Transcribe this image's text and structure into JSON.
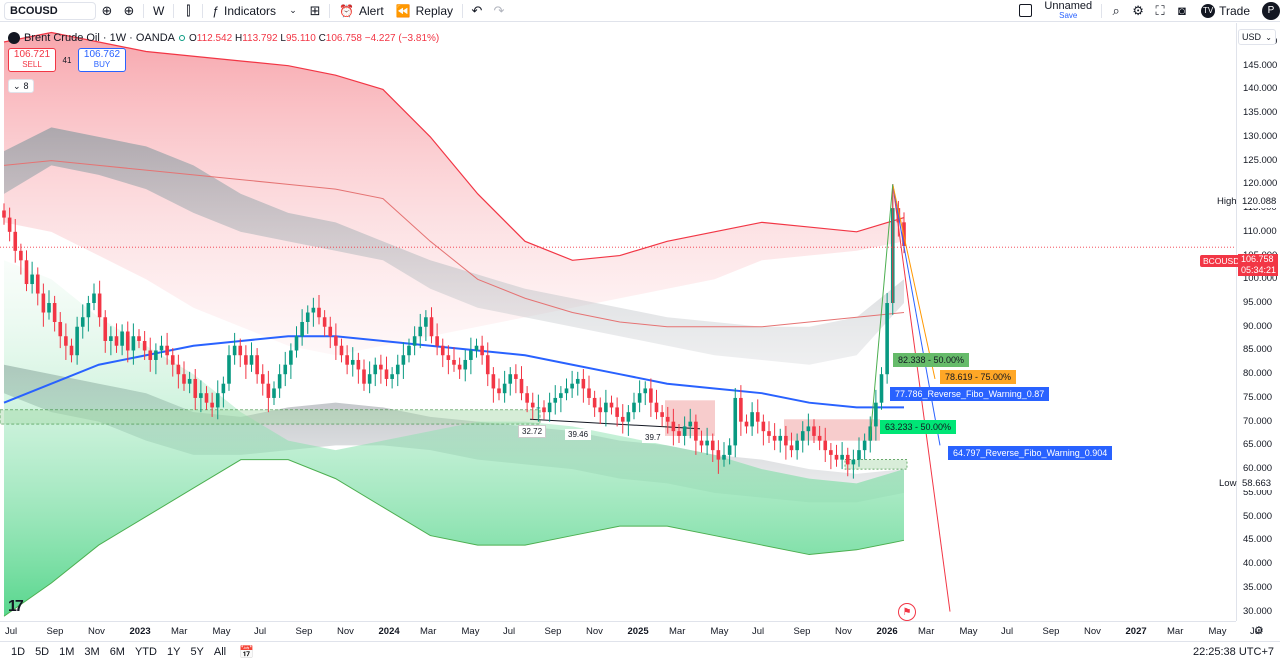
{
  "toolbar": {
    "symbol": "BCOUSD",
    "interval": "W",
    "indicators_label": "Indicators",
    "alert_label": "Alert",
    "replay_label": "Replay",
    "layout_name": "Unnamed",
    "layout_save": "Save",
    "trade_label": "Trade",
    "avatar_letter": "P"
  },
  "legend": {
    "title": "Brent Crude Oil · 1W · OANDA",
    "open_label": "O",
    "open": "112.542",
    "high_label": "H",
    "high": "113.792",
    "low_label": "L",
    "low": "95.110",
    "close_label": "C",
    "close": "106.758",
    "change": "−4.227 (−3.81%)",
    "sell_price": "106.721",
    "sell_label": "SELL",
    "spread": "41",
    "buy_price": "106.762",
    "buy_label": "BUY",
    "collapsed_count": "8"
  },
  "price_axis": {
    "currency": "USD",
    "ticks": [
      "150.000",
      "145.000",
      "140.000",
      "135.000",
      "130.000",
      "125.000",
      "120.000",
      "115.000",
      "110.000",
      "105.000",
      "100.000",
      "95.000",
      "90.000",
      "85.000",
      "80.000",
      "75.000",
      "70.000",
      "65.000",
      "60.000",
      "55.000",
      "50.000",
      "45.000",
      "40.000",
      "35.000",
      "30.000"
    ],
    "high_label": "High",
    "high_value": "120.088",
    "low_label": "Low",
    "low_value": "58.663",
    "symbol_tag": "BCOUSD",
    "last_price": "106.758",
    "countdown": "05:34:21"
  },
  "time_axis": {
    "ticks": [
      {
        "label": "Jul",
        "bold": false
      },
      {
        "label": "Sep",
        "bold": false
      },
      {
        "label": "Nov",
        "bold": false
      },
      {
        "label": "2023",
        "bold": true
      },
      {
        "label": "Mar",
        "bold": false
      },
      {
        "label": "May",
        "bold": false
      },
      {
        "label": "Jul",
        "bold": false
      },
      {
        "label": "Sep",
        "bold": false
      },
      {
        "label": "Nov",
        "bold": false
      },
      {
        "label": "2024",
        "bold": true
      },
      {
        "label": "Mar",
        "bold": false
      },
      {
        "label": "May",
        "bold": false
      },
      {
        "label": "Jul",
        "bold": false
      },
      {
        "label": "Sep",
        "bold": false
      },
      {
        "label": "Nov",
        "bold": false
      },
      {
        "label": "2025",
        "bold": true
      },
      {
        "label": "Mar",
        "bold": false
      },
      {
        "label": "May",
        "bold": false
      },
      {
        "label": "Jul",
        "bold": false
      },
      {
        "label": "Sep",
        "bold": false
      },
      {
        "label": "Nov",
        "bold": false
      },
      {
        "label": "2026",
        "bold": true
      },
      {
        "label": "Mar",
        "bold": false
      },
      {
        "label": "May",
        "bold": false
      },
      {
        "label": "Jul",
        "bold": false
      },
      {
        "label": "Sep",
        "bold": false
      },
      {
        "label": "Nov",
        "bold": false
      },
      {
        "label": "2027",
        "bold": true
      },
      {
        "label": "Mar",
        "bold": false
      },
      {
        "label": "May",
        "bold": false
      },
      {
        "label": "Jul",
        "bold": false
      }
    ]
  },
  "annotations": {
    "fib1": "82.338 - 50.00%",
    "fib2": "78.619 - 75.00%",
    "fib3": "77.786_Reverse_Fibo_Warning_0.87",
    "fib4": "63.233 - 50.00%",
    "fib5": "64.797_Reverse_Fibo_Warning_0.904",
    "lbl1": "32.72",
    "lbl2": "39.46",
    "lbl3": "39.7"
  },
  "colors": {
    "up": "#089981",
    "down": "#f23645",
    "ma_blue": "#2962ff",
    "fib_green": "#4caf50",
    "fib_orange": "#ff9800",
    "fib_blue": "#2962ff",
    "fib_green2": "#00e676"
  },
  "bottom": {
    "ranges": [
      "1D",
      "5D",
      "1M",
      "3M",
      "6M",
      "YTD",
      "1Y",
      "5Y",
      "All"
    ],
    "clock": "22:25:38 UTC+7"
  },
  "chart_data": {
    "type": "candlestick",
    "price_range": [
      28,
      154
    ],
    "closes": [
      113,
      110,
      106,
      104,
      99,
      101,
      97,
      93,
      95,
      91,
      88,
      86,
      84,
      90,
      92,
      95,
      97,
      92,
      87,
      88,
      86,
      89,
      85,
      88,
      87,
      85,
      83,
      85,
      86,
      84,
      82,
      80,
      78,
      79,
      75,
      76,
      74,
      73,
      76,
      78,
      84,
      86,
      84,
      82,
      84,
      80,
      78,
      75,
      77,
      80,
      82,
      85,
      88,
      91,
      93,
      94,
      92,
      90,
      88,
      86,
      84,
      82,
      83,
      81,
      78,
      80,
      82,
      81,
      79,
      80,
      82,
      84,
      86,
      88,
      90,
      92,
      88,
      86,
      84,
      83,
      82,
      81,
      83,
      85,
      86,
      84,
      80,
      77,
      76,
      78,
      80,
      79,
      76,
      74,
      73,
      73,
      72,
      74,
      75,
      76,
      77,
      78,
      79,
      77,
      75,
      73,
      72,
      74,
      73,
      71,
      70,
      72,
      74,
      76,
      77,
      74,
      72,
      71,
      70,
      68,
      67,
      69,
      70,
      66,
      65,
      66,
      64,
      62,
      63,
      65,
      75,
      70,
      69,
      72,
      70,
      68,
      67,
      66,
      67,
      65,
      64,
      66,
      68,
      69,
      67,
      66,
      64,
      63,
      62,
      63,
      61,
      62,
      64,
      66,
      69,
      74,
      80,
      95,
      115,
      112,
      107
    ]
  }
}
